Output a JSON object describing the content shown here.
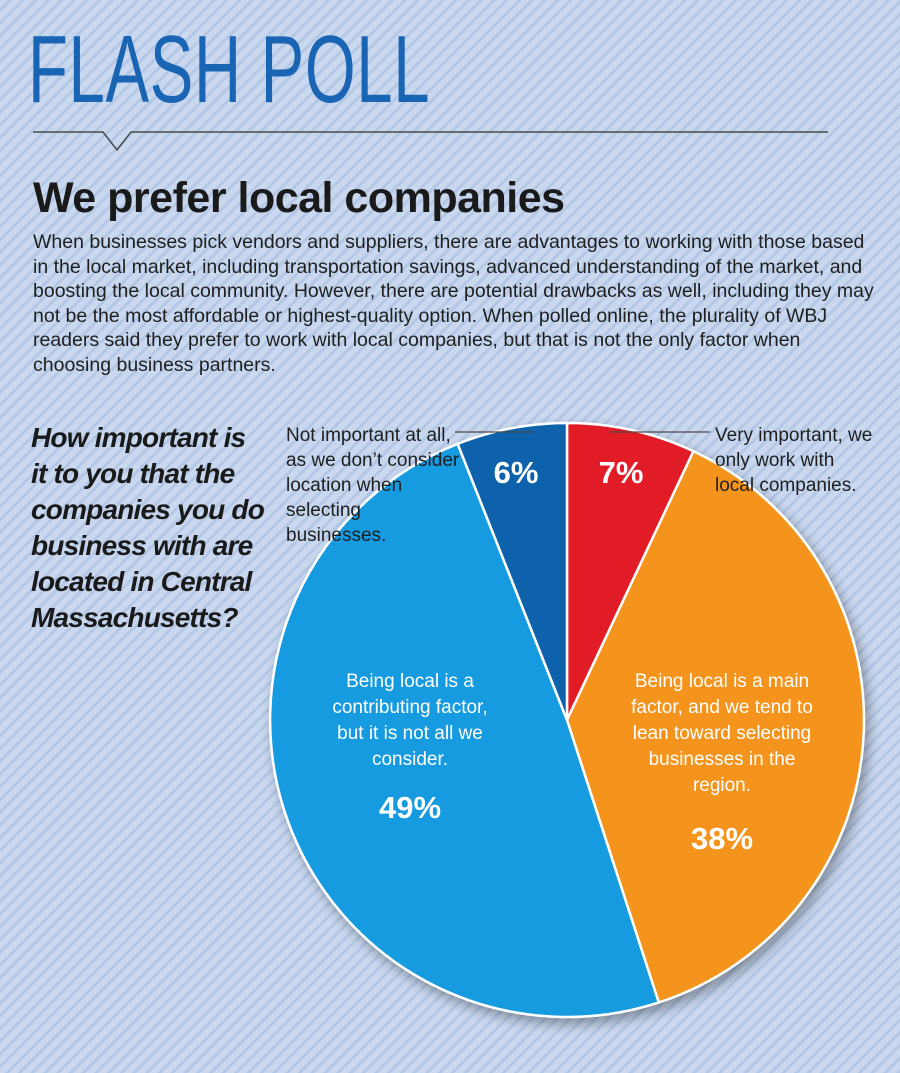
{
  "header": {
    "kicker": "FLASH POLL",
    "headline": "We prefer local companies",
    "intro": "When businesses pick vendors and suppliers, there are advantages to working with those based in the local market, including transportation savings, advanced understanding of the market, and boosting the local community. However, there are potential drawbacks as well, including they may not be the most affordable or highest-quality option. When polled online, the plurality of WBJ readers said they prefer to work with local companies, but that is not the only factor when choosing business partners."
  },
  "question": "How important is it to you that the companies you do business with are located in Central Massachusetts?",
  "colors": {
    "kicker": "#1a64b4",
    "very_important": "#e21f26",
    "main_factor": "#f5941f",
    "contributing": "#139be0",
    "not_important": "#0f62ab",
    "background": "#c9d8ef"
  },
  "chart_data": {
    "type": "pie",
    "unit": "%",
    "slices": [
      {
        "label": "Very important, we only work with local companies.",
        "value": 7,
        "display": "7%",
        "color": "#e21f26"
      },
      {
        "label": "Being local is a main factor, and we tend to lean toward selecting businesses in the region.",
        "value": 38,
        "display": "38%",
        "color": "#f5941f"
      },
      {
        "label": "Being local is a contributing factor, but it is not all we consider.",
        "value": 49,
        "display": "49%",
        "color": "#139be0"
      },
      {
        "label": "Not important at all, as we don’t consider location when selecting businesses.",
        "value": 6,
        "display": "6%",
        "color": "#0f62ab"
      }
    ]
  }
}
